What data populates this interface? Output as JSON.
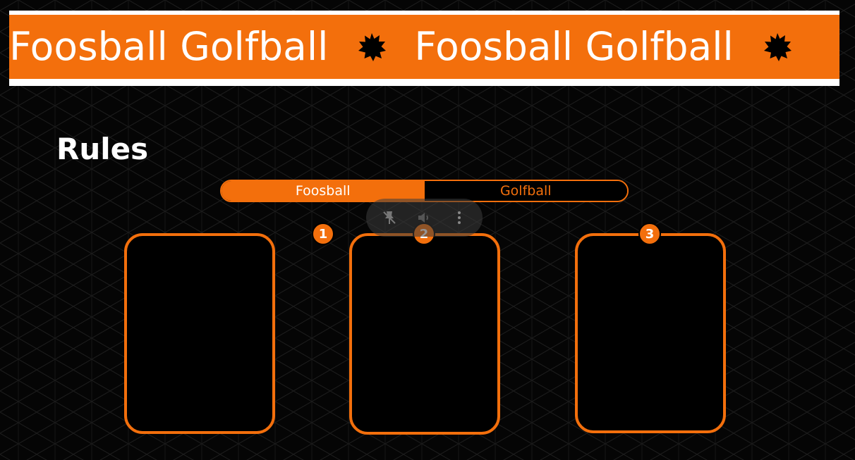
{
  "banner": {
    "text_1": "Foosball Golfball",
    "text_2": "Foosball Golfball",
    "separator_icon": "star-burst-icon",
    "background_color": "#f36f0c",
    "border_color": "#ffffff",
    "text_color": "#ffffff"
  },
  "rules": {
    "title": "Rules"
  },
  "tabs": [
    {
      "label": "Foosball",
      "active": true
    },
    {
      "label": "Golfball",
      "active": false
    }
  ],
  "overlay": {
    "icons": [
      "pin-off-icon",
      "volume-icon",
      "more-vertical-icon"
    ]
  },
  "cards": [
    {
      "number": "1"
    },
    {
      "number": "2"
    },
    {
      "number": "3"
    }
  ],
  "colors": {
    "accent": "#f36f0c",
    "background": "#050505"
  }
}
